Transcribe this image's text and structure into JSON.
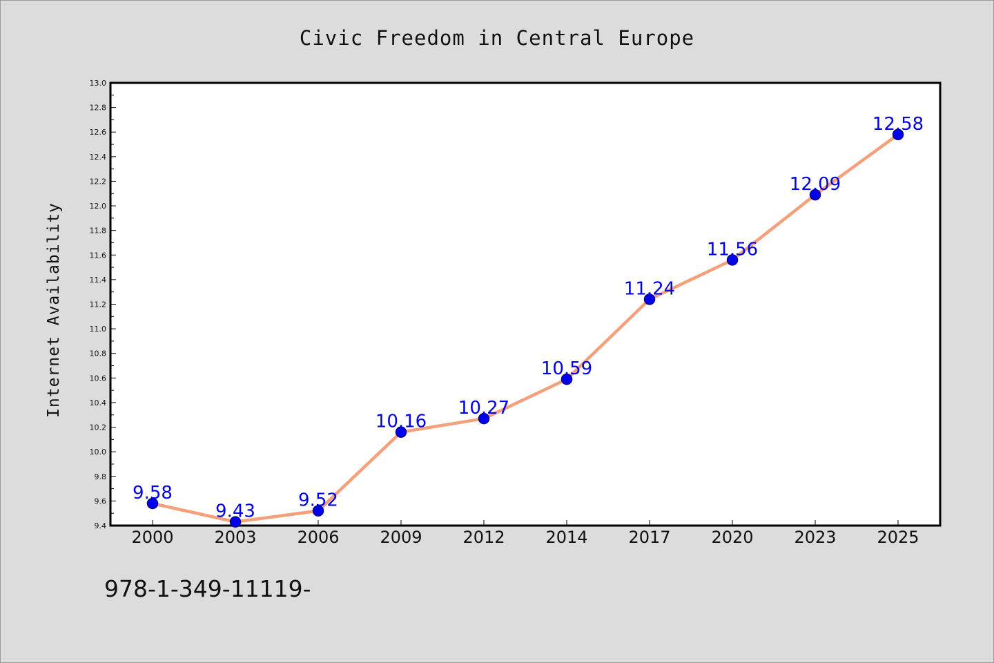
{
  "chart_data": {
    "type": "line",
    "title": "Civic Freedom in Central Europe",
    "ylabel": "Internet Availability",
    "xlabel": "",
    "categories": [
      "2000",
      "2003",
      "2006",
      "2009",
      "2012",
      "2014",
      "2017",
      "2020",
      "2023",
      "2025"
    ],
    "series": [
      {
        "values": [
          9.58,
          9.43,
          9.52,
          10.16,
          10.27,
          10.59,
          11.24,
          11.56,
          12.09,
          12.58
        ]
      }
    ],
    "data_labels": [
      "9.58",
      "9.43",
      "9.52",
      "10.16",
      "10.27",
      "10.59",
      "11.24",
      "11.56",
      "12.09",
      "12.58"
    ],
    "ylim": [
      9.4,
      13.0
    ],
    "yticks": [
      "9.4",
      "9.6",
      "9.8",
      "10.0",
      "10.2",
      "10.4",
      "10.6",
      "10.8",
      "11.0",
      "11.2",
      "11.4",
      "11.6",
      "11.8",
      "12.0",
      "12.2",
      "12.4",
      "12.6",
      "12.8",
      "13.0"
    ],
    "grid": false,
    "colors": {
      "line": "#f4a07a",
      "marker": "#0000ee",
      "marker_edge": "#00008b",
      "label": "#0000ee",
      "plot_bg": "#ffffff",
      "figure_bg": "#dcdcdc"
    }
  },
  "footer": {
    "text": "978-1-349-11119-"
  }
}
